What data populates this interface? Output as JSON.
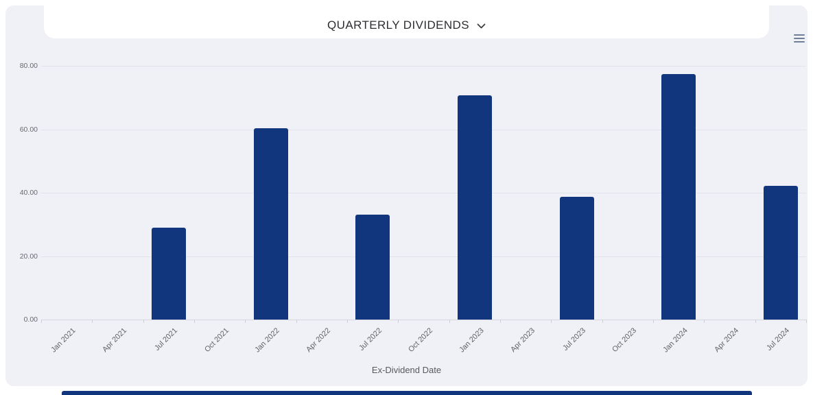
{
  "header": {
    "title": "QUARTERLY DIVIDENDS",
    "chevron_icon": "chevron-down-icon",
    "menu_icon": "hamburger-menu-icon"
  },
  "colors": {
    "bar": "#11367d",
    "card_background": "#f0f1f6",
    "gridline": "#e3e3ec",
    "axis_text": "#66696f",
    "title_text": "#2b2d31",
    "menu_icon": "#6e7f96",
    "bottom_bar": "#11367d"
  },
  "chart_data": {
    "type": "bar",
    "title": "QUARTERLY DIVIDENDS",
    "categories": [
      "Jan 2021",
      "Apr 2021",
      "Jul 2021",
      "Oct 2021",
      "Jan 2022",
      "Apr 2022",
      "Jul 2022",
      "Oct 2022",
      "Jan 2023",
      "Apr 2023",
      "Jul 2023",
      "Oct 2023",
      "Jan 2024",
      "Apr 2024",
      "Jul 2024"
    ],
    "values": [
      0,
      0,
      29.0,
      0,
      60.3,
      0,
      33.1,
      0,
      70.8,
      0,
      38.6,
      0,
      77.3,
      0,
      42.2
    ],
    "xlabel": "Ex-Dividend Date",
    "ylabel": "",
    "ylim": [
      0,
      80
    ],
    "yticks": [
      "0.00",
      "20.00",
      "40.00",
      "60.00",
      "80.00"
    ],
    "grid": true,
    "legend": "none"
  }
}
